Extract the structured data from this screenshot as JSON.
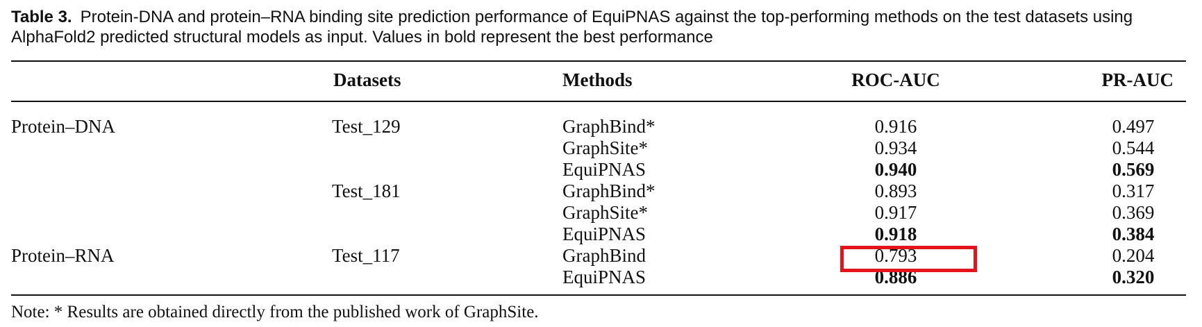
{
  "caption": {
    "label": "Table 3.",
    "text": "Protein-DNA and protein–RNA binding site prediction performance of EquiPNAS against the top-performing methods on the test datasets using AlphaFold2 predicted structural models as input. Values in bold represent the best performance"
  },
  "table": {
    "headers": [
      "Datasets",
      "Methods",
      "ROC-AUC",
      "PR-AUC"
    ],
    "rows": [
      {
        "task": "Protein–DNA",
        "dataset": "Test_129",
        "method": "GraphBind*",
        "roc": "0.916",
        "pr": "0.497",
        "bold": false
      },
      {
        "task": "",
        "dataset": "",
        "method": "GraphSite*",
        "roc": "0.934",
        "pr": "0.544",
        "bold": false
      },
      {
        "task": "",
        "dataset": "",
        "method": "EquiPNAS",
        "roc": "0.940",
        "pr": "0.569",
        "bold": true
      },
      {
        "task": "",
        "dataset": "Test_181",
        "method": "GraphBind*",
        "roc": "0.893",
        "pr": "0.317",
        "bold": false
      },
      {
        "task": "",
        "dataset": "",
        "method": "GraphSite*",
        "roc": "0.917",
        "pr": "0.369",
        "bold": false
      },
      {
        "task": "",
        "dataset": "",
        "method": "EquiPNAS",
        "roc": "0.918",
        "pr": "0.384",
        "bold": true
      },
      {
        "task": "Protein–RNA",
        "dataset": "Test_117",
        "method": "GraphBind",
        "roc": "0.793",
        "pr": "0.204",
        "bold": false
      },
      {
        "task": "",
        "dataset": "",
        "method": "EquiPNAS",
        "roc": "0.886",
        "pr": "0.320",
        "bold": true
      }
    ]
  },
  "note": "Note: * Results are obtained directly from the published work of GraphSite.",
  "highlight_color": "#e3141b"
}
